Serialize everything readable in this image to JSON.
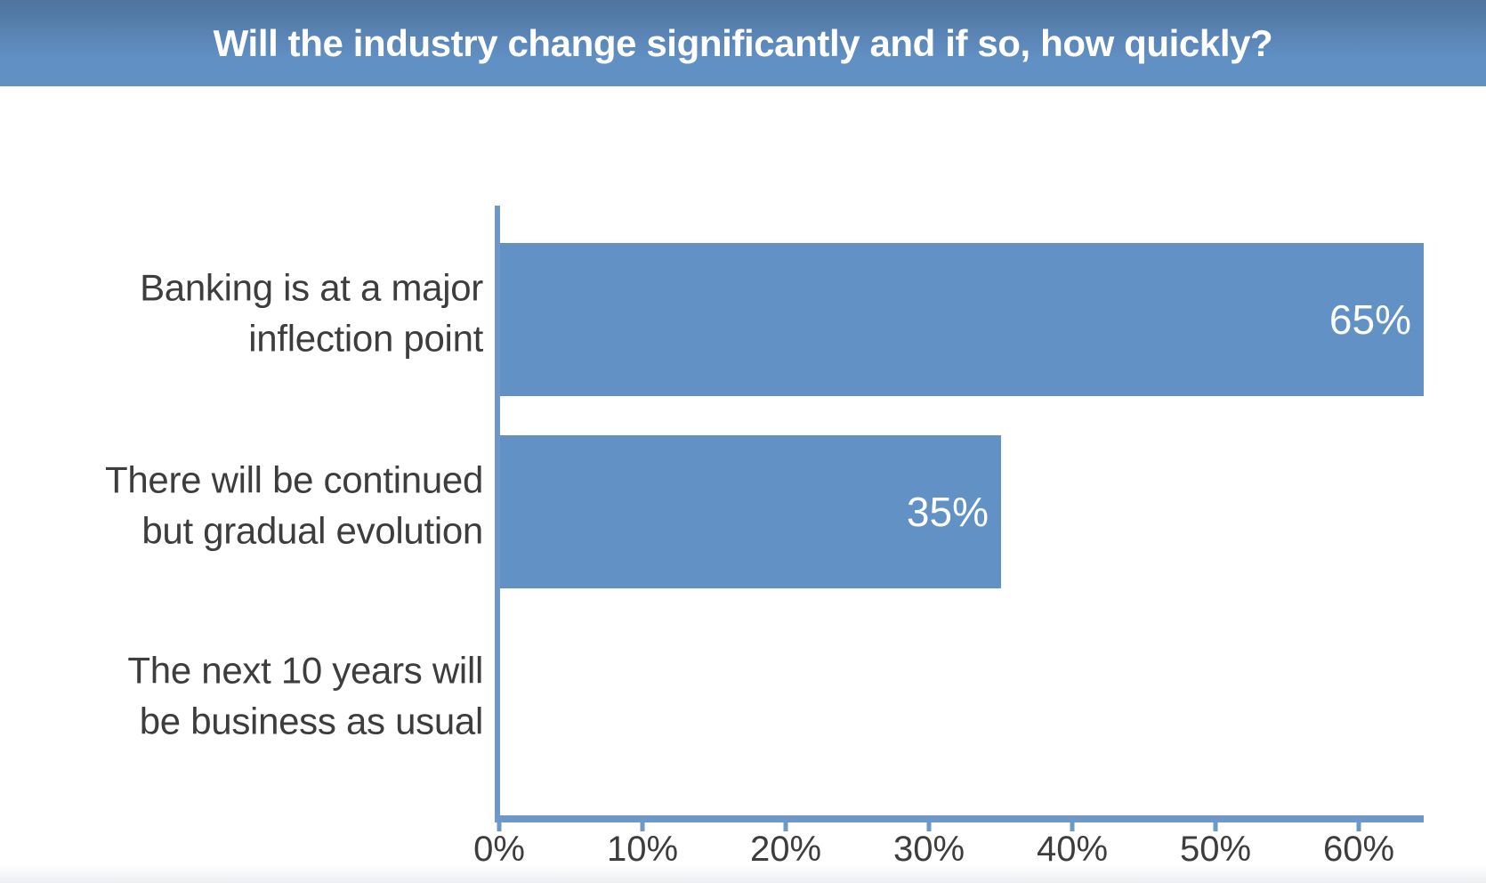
{
  "title": {
    "text": "Will the industry change significantly and if so, how quickly?"
  },
  "colors": {
    "header_top": "#4f739d",
    "header_bottom": "#6190c4",
    "title_text": "#ffffff",
    "bar": "#6292c5",
    "axis": "#6e98c8",
    "label_text": "#3d3d3d",
    "value_text": "#ffffff"
  },
  "chart_data": {
    "type": "bar",
    "orientation": "horizontal",
    "title": "Will the industry change significantly and if so, how quickly?",
    "categories": [
      "Banking is at a major inflection point",
      "There will be continued but gradual evolution",
      "The next 10 years will be business as usual"
    ],
    "values": [
      65,
      35,
      0
    ],
    "value_labels": [
      "65%",
      "35%",
      ""
    ],
    "x_tick_labels": [
      "0%",
      "10%",
      "20%",
      "30%",
      "40%",
      "50%",
      "60%"
    ],
    "x_tick_values": [
      0,
      10,
      20,
      30,
      40,
      50,
      60
    ],
    "xlim": [
      0,
      64.5
    ],
    "xlabel": "",
    "ylabel": "",
    "grid": false,
    "legend": false,
    "data_labels_inside_bars": true
  },
  "rows": [
    {
      "line1": "Banking is at a major",
      "line2": "inflection point",
      "value_label": "65%"
    },
    {
      "line1": "There will be continued",
      "line2": "but gradual evolution",
      "value_label": "35%"
    },
    {
      "line1": "The next 10 years will",
      "line2": "be business as usual",
      "value_label": ""
    }
  ]
}
